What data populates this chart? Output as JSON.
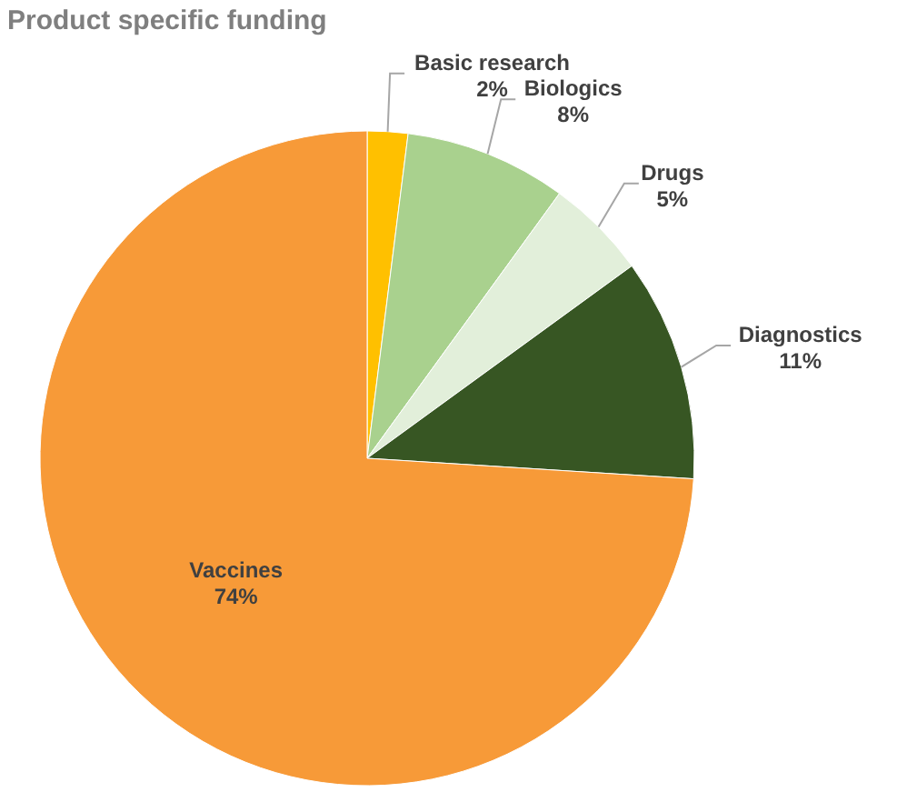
{
  "chart_data": {
    "type": "pie",
    "title": "Product specific funding",
    "categories": [
      "Basic research",
      "Biologics",
      "Drugs",
      "Diagnostics",
      "Vaccines"
    ],
    "values": [
      2,
      8,
      5,
      11,
      74
    ],
    "value_labels": [
      "2%",
      "8%",
      "5%",
      "11%",
      "74%"
    ],
    "colors": [
      "#ffc000",
      "#a9d18e",
      "#e2efda",
      "#375623",
      "#f79a38"
    ]
  }
}
